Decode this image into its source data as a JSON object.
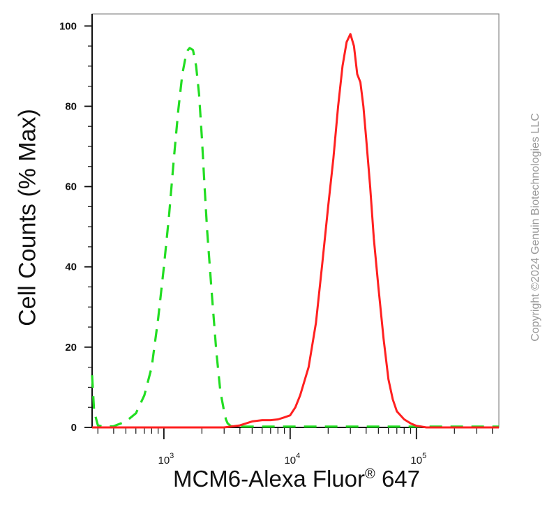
{
  "chart_data": {
    "type": "line",
    "title": "",
    "ylabel": "Cell Counts (% Max)",
    "xlabel": {
      "main": "MCM6-Alexa Fluor",
      "superscript": "®",
      "suffix": " 647"
    },
    "x_scale": "log",
    "xlim": [
      270,
      450000
    ],
    "ylim": [
      0,
      103
    ],
    "y_ticks": [
      0,
      20,
      40,
      60,
      80,
      100
    ],
    "x_major_ticks": [
      1000,
      10000,
      100000
    ],
    "x_tick_labels": [
      {
        "base": "10",
        "exp": "3"
      },
      {
        "base": "10",
        "exp": "4"
      },
      {
        "base": "10",
        "exp": "5"
      }
    ],
    "grid": false,
    "series": [
      {
        "style": "dashed",
        "color": "#22dd22",
        "x": [
          270,
          280,
          300,
          330,
          400,
          500,
          600,
          700,
          800,
          900,
          1000,
          1100,
          1200,
          1300,
          1400,
          1500,
          1550,
          1600,
          1700,
          1800,
          1900,
          2000,
          2100,
          2200,
          2400,
          2600,
          2800,
          3000,
          3100,
          3200,
          3400,
          4000,
          10000,
          100000,
          450000
        ],
        "y": [
          13,
          4,
          0.5,
          0.2,
          0.3,
          1.5,
          3.5,
          8,
          15,
          27,
          40,
          53,
          67,
          79,
          88,
          93,
          94,
          94.5,
          94,
          90,
          83,
          72,
          60,
          49,
          33,
          19,
          9,
          4,
          2,
          1,
          0.3,
          0.2,
          0.2,
          0.2,
          0.2
        ]
      },
      {
        "style": "solid",
        "color": "#ff2020",
        "x": [
          270,
          1000,
          3000,
          4000,
          5000,
          6000,
          7000,
          8000,
          9000,
          10000,
          11000,
          12000,
          14000,
          16000,
          18000,
          20000,
          22000,
          24000,
          26000,
          28000,
          30000,
          32000,
          34000,
          36000,
          38000,
          40000,
          43000,
          46000,
          50000,
          55000,
          60000,
          65000,
          70000,
          80000,
          90000,
          100000,
          110000,
          120000,
          150000,
          450000
        ],
        "y": [
          0,
          0,
          0,
          0.5,
          1.5,
          1.8,
          1.8,
          2,
          2.5,
          3,
          5,
          8,
          15,
          26,
          41,
          55,
          67,
          80,
          90,
          96,
          98,
          95,
          88,
          86,
          80,
          72,
          60,
          47,
          35,
          22,
          12,
          7,
          4,
          2,
          1,
          0.4,
          0.2,
          0,
          0,
          0
        ]
      }
    ]
  },
  "watermark": "Copyright ©2024 Genuin Biotechnologies LLC"
}
